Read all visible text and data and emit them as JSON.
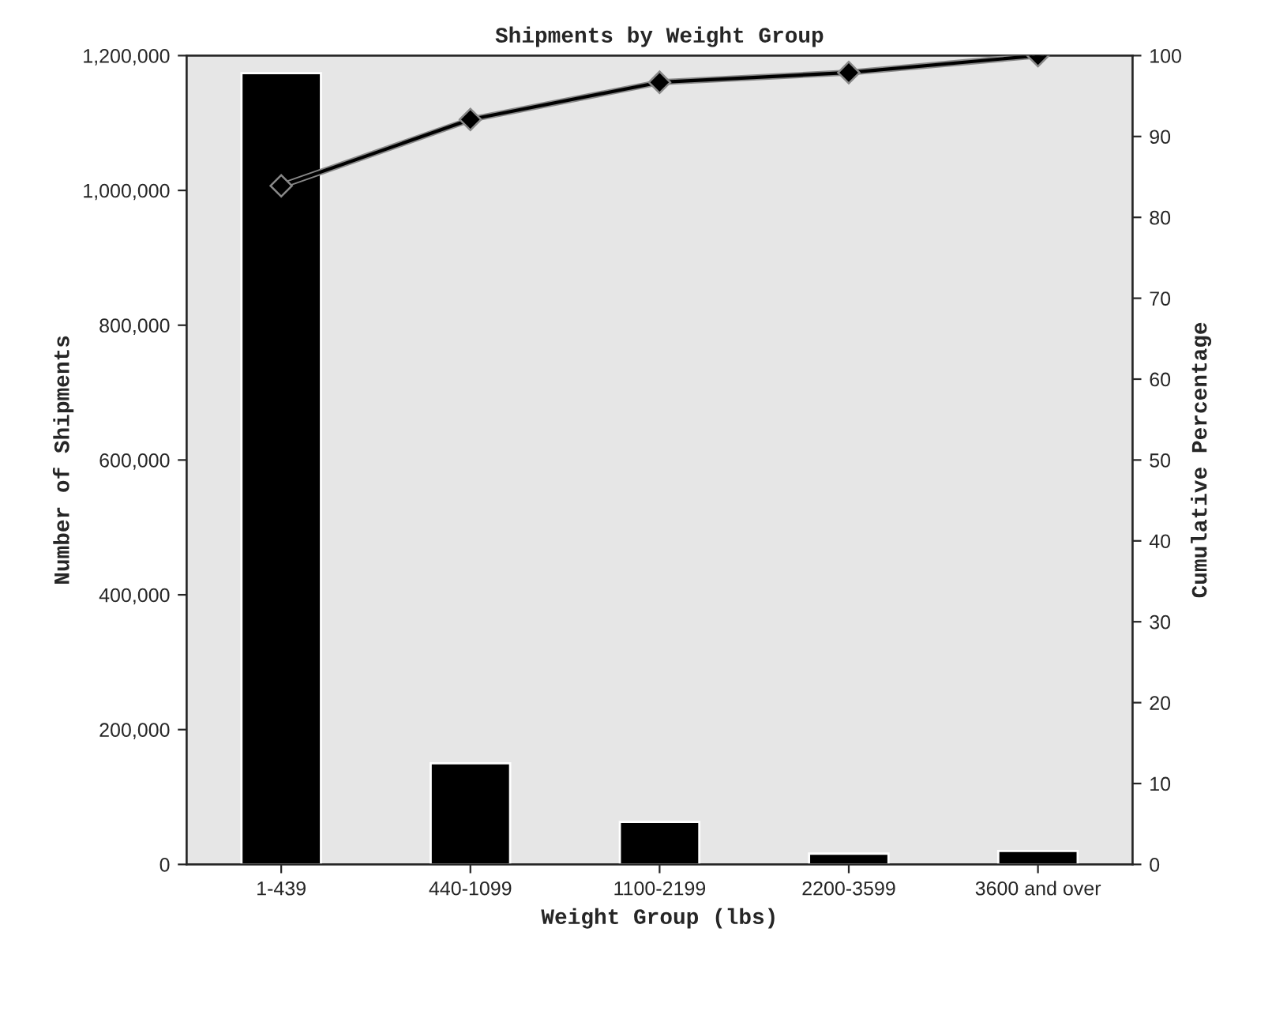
{
  "chart_data": {
    "type": "bar",
    "title": "Shipments by Weight Group",
    "xlabel": "Weight Group (lbs)",
    "ylabel": "Number of Shipments",
    "y2label": "Cumulative Percentage",
    "categories": [
      "1-439",
      "440-1099",
      "1100-2199",
      "2200-3599",
      "3600 and over"
    ],
    "series": [
      {
        "color": "#000000",
        "values": [
          1174000,
          150000,
          63000,
          16000,
          20000
        ]
      },
      {
        "type": "line",
        "axis": "y2",
        "color": "#000000",
        "marker": "diamond",
        "values": [
          83.9,
          92.1,
          96.7,
          97.9,
          100
        ]
      }
    ],
    "ylim": [
      0,
      1200000
    ],
    "yticks": [
      {
        "value": 0,
        "label": "0"
      },
      {
        "value": 200000,
        "label": "200,000"
      },
      {
        "value": 400000,
        "label": "400,000"
      },
      {
        "value": 600000,
        "label": "600,000"
      },
      {
        "value": 800000,
        "label": "800,000"
      },
      {
        "value": 1000000,
        "label": "1,000,000"
      },
      {
        "value": 1200000,
        "label": "1,200,000"
      }
    ],
    "y2lim": [
      0,
      100
    ],
    "y2ticks": [
      0,
      10,
      20,
      30,
      40,
      50,
      60,
      70,
      80,
      90,
      100
    ],
    "grid": false,
    "legend": false
  }
}
